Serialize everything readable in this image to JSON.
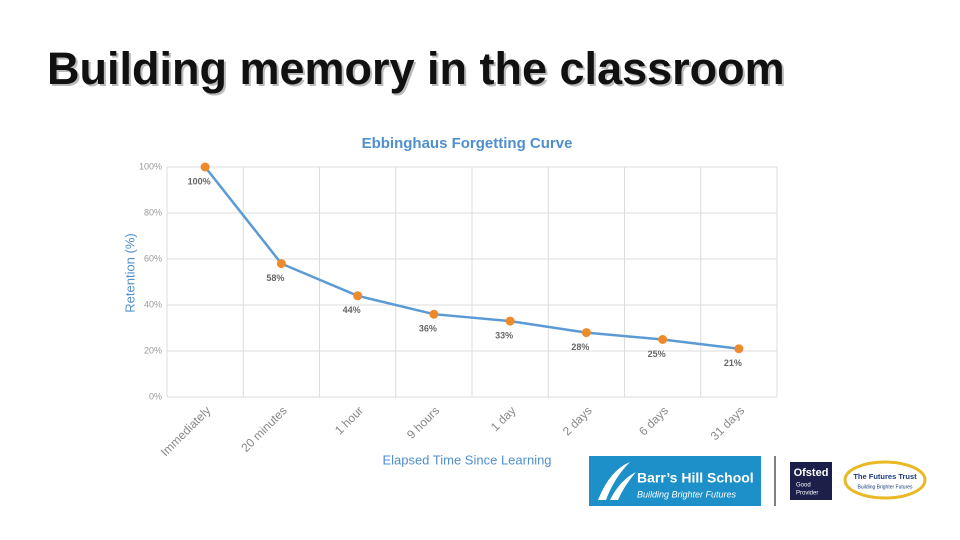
{
  "slide": {
    "title": "Building memory in the classroom",
    "logos": {
      "school": "Barr’s Hill School",
      "school_tagline": "Building Brighter Futures",
      "ofsted": "Ofsted",
      "ofsted_grade": "Good",
      "ofsted_role": "Provider",
      "trust": "The Futures Trust",
      "trust_tagline": "Building Brighter Futures"
    }
  },
  "chart_data": {
    "type": "line",
    "title": "Ebbinghaus Forgetting Curve",
    "x_label": "Elapsed Time Since Learning",
    "y_label": "Retention (%)",
    "categories": [
      "Immediately",
      "20 minutes",
      "1 hour",
      "9 hours",
      "1 day",
      "2 days",
      "6 days",
      "31 days"
    ],
    "series": [
      {
        "name": "Retention",
        "color": "#5b9bd5",
        "marker_color": "#ef8a2b",
        "values": [
          100,
          58,
          44,
          36,
          33,
          28,
          25,
          21
        ],
        "value_labels": [
          "100%",
          "58%",
          "44%",
          "36%",
          "33%",
          "28%",
          "25%",
          "21%"
        ]
      }
    ],
    "ylim": [
      0,
      100
    ],
    "yticks": [
      {
        "value": 0,
        "label": "0%"
      },
      {
        "value": 20,
        "label": "20%"
      },
      {
        "value": 40,
        "label": "40%"
      },
      {
        "value": 60,
        "label": "60%"
      },
      {
        "value": 80,
        "label": "80%"
      },
      {
        "value": 100,
        "label": "100%"
      }
    ],
    "grid": true
  }
}
